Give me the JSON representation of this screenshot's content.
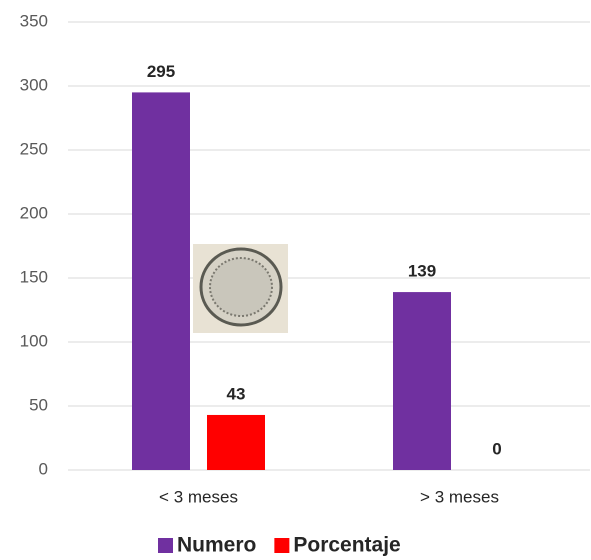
{
  "chart_data": {
    "type": "bar",
    "categories": [
      "< 3 meses",
      "> 3 meses"
    ],
    "series": [
      {
        "name": "Numero",
        "color": "#7030a0",
        "values": [
          295,
          139
        ]
      },
      {
        "name": "Porcentaje",
        "color": "#ff0000",
        "values": [
          43,
          0
        ]
      }
    ],
    "ylim": [
      0,
      350
    ],
    "yticks": [
      0,
      50,
      100,
      150,
      200,
      250,
      300,
      350
    ],
    "grid": true,
    "data_labels": true,
    "legend": "bottom"
  }
}
